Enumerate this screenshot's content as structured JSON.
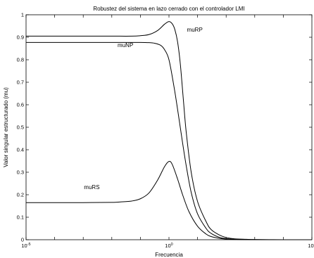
{
  "chart_data": {
    "type": "line",
    "title": "Robustez del sistema en lazo cerrado con el controlador LMI",
    "xlabel": "Frecuencia",
    "ylabel": "Valor singular estructurado (mu)",
    "x_scale": "log",
    "xlim": [
      1e-05,
      100000
    ],
    "ylim": [
      0,
      1
    ],
    "grid": false,
    "x_ticks": [
      {
        "value": 1e-05,
        "base": "10",
        "exp": "-5"
      },
      {
        "value": 1,
        "base": "10",
        "exp": "0"
      },
      {
        "value": 100000,
        "base": "10",
        "exp": "5"
      }
    ],
    "y_ticks": [
      {
        "value": 0,
        "label": "0"
      },
      {
        "value": 0.1,
        "label": "0.1"
      },
      {
        "value": 0.2,
        "label": "0.2"
      },
      {
        "value": 0.3,
        "label": "0.3"
      },
      {
        "value": 0.4,
        "label": "0.4"
      },
      {
        "value": 0.5,
        "label": "0.5"
      },
      {
        "value": 0.6,
        "label": "0.6"
      },
      {
        "value": 0.7,
        "label": "0.7"
      },
      {
        "value": 0.8,
        "label": "0.8"
      },
      {
        "value": 0.9,
        "label": "0.9"
      },
      {
        "value": 1,
        "label": "1"
      }
    ],
    "series": [
      {
        "name": "muRP",
        "x": [
          1e-05,
          0.001,
          0.01,
          0.05,
          0.1,
          0.2,
          0.4,
          0.7,
          1,
          1.3,
          1.6,
          2,
          2.5,
          3.2,
          4,
          6,
          10,
          20,
          30,
          60,
          100,
          200,
          500,
          1000,
          10000,
          100000
        ],
        "values": [
          0.905,
          0.905,
          0.905,
          0.905,
          0.907,
          0.912,
          0.93,
          0.958,
          0.97,
          0.96,
          0.935,
          0.88,
          0.78,
          0.62,
          0.48,
          0.3,
          0.17,
          0.08,
          0.045,
          0.02,
          0.01,
          0.004,
          0.002,
          0.001,
          0,
          0
        ]
      },
      {
        "name": "muNP",
        "x": [
          1e-05,
          0.001,
          0.01,
          0.05,
          0.1,
          0.2,
          0.3,
          0.5,
          0.7,
          1,
          1.5,
          2,
          3,
          4,
          6,
          10,
          20,
          30,
          60,
          100,
          200,
          1000,
          10000,
          100000
        ],
        "values": [
          0.877,
          0.877,
          0.877,
          0.877,
          0.877,
          0.876,
          0.874,
          0.865,
          0.845,
          0.8,
          0.68,
          0.58,
          0.43,
          0.33,
          0.21,
          0.115,
          0.05,
          0.028,
          0.01,
          0.005,
          0.002,
          0,
          0,
          0
        ]
      },
      {
        "name": "muRS",
        "x": [
          1e-05,
          0.001,
          0.01,
          0.02,
          0.05,
          0.1,
          0.2,
          0.4,
          0.7,
          1,
          1.3,
          2,
          3,
          5,
          10,
          20,
          30,
          60,
          100,
          200,
          1000,
          10000,
          100000
        ],
        "values": [
          0.165,
          0.165,
          0.166,
          0.168,
          0.172,
          0.182,
          0.208,
          0.265,
          0.325,
          0.348,
          0.335,
          0.27,
          0.2,
          0.125,
          0.06,
          0.025,
          0.014,
          0.006,
          0.003,
          0.001,
          0,
          0,
          0
        ]
      }
    ],
    "annotations": [
      {
        "text": "muRP",
        "x": 8,
        "y": 0.925
      },
      {
        "text": "muNP",
        "x": 0.03,
        "y": 0.856
      },
      {
        "text": "muRS",
        "x": 0.002,
        "y": 0.225
      }
    ]
  }
}
